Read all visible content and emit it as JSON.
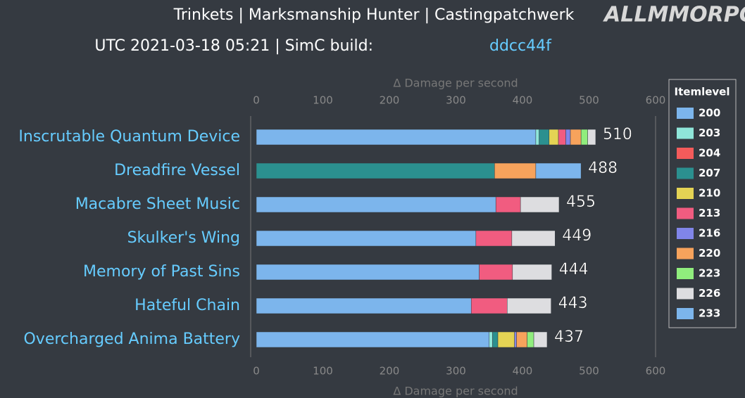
{
  "chart_data": {
    "type": "bar",
    "orientation": "horizontal",
    "stacked": true,
    "title": "Trinkets | Marksmanship Hunter | Castingpatchwerk",
    "subtitle": "UTC 2021-03-18 05:21 | SimC build:",
    "subtitle_link": "ddcc44f",
    "watermark": "ALLMMORPG.RU",
    "x_label": "Δ Damage per second",
    "legend_title": "Itemlevel",
    "legend_position": "right",
    "categories": [
      "Inscrutable Quantum Device",
      "Dreadfire Vessel",
      "Macabre Sheet Music",
      "Skulker's Wing",
      "Memory of Past Sins",
      "Hateful Chain",
      "Overcharged Anima Battery"
    ],
    "totals": [
      510,
      488,
      455,
      449,
      444,
      443,
      437
    ],
    "xlim": [
      0,
      600
    ],
    "xticks": [
      0,
      100,
      200,
      300,
      400,
      500,
      600
    ],
    "series": [
      {
        "name": "200",
        "color": "#7cb5ec",
        "values": [
          420,
          null,
          360,
          330,
          335,
          323,
          350
        ]
      },
      {
        "name": "203",
        "color": "#8fe6d9",
        "values": [
          5,
          null,
          null,
          null,
          null,
          null,
          5
        ]
      },
      {
        "name": "204",
        "color": "#f45b5b",
        "values": [
          null,
          null,
          null,
          null,
          null,
          null,
          null
        ]
      },
      {
        "name": "207",
        "color": "#2b908f",
        "values": [
          15,
          358,
          null,
          null,
          null,
          null,
          8
        ]
      },
      {
        "name": "210",
        "color": "#e4d354",
        "values": [
          14,
          null,
          null,
          null,
          null,
          null,
          25
        ]
      },
      {
        "name": "213",
        "color": "#f15c80",
        "values": [
          11,
          null,
          37,
          54,
          50,
          54,
          null
        ]
      },
      {
        "name": "216",
        "color": "#8085e9",
        "values": [
          7,
          null,
          null,
          null,
          null,
          null,
          3
        ]
      },
      {
        "name": "220",
        "color": "#f7a35c",
        "values": [
          16,
          62,
          null,
          null,
          null,
          null,
          16
        ]
      },
      {
        "name": "223",
        "color": "#90ed7d",
        "values": [
          10,
          null,
          null,
          null,
          null,
          null,
          10
        ]
      },
      {
        "name": "226",
        "color": "#dddde0",
        "values": [
          12,
          null,
          58,
          65,
          59,
          66,
          20
        ]
      },
      {
        "name": "233",
        "color": "#7cb5ec",
        "values": [
          null,
          68,
          null,
          null,
          null,
          null,
          null
        ]
      }
    ]
  }
}
